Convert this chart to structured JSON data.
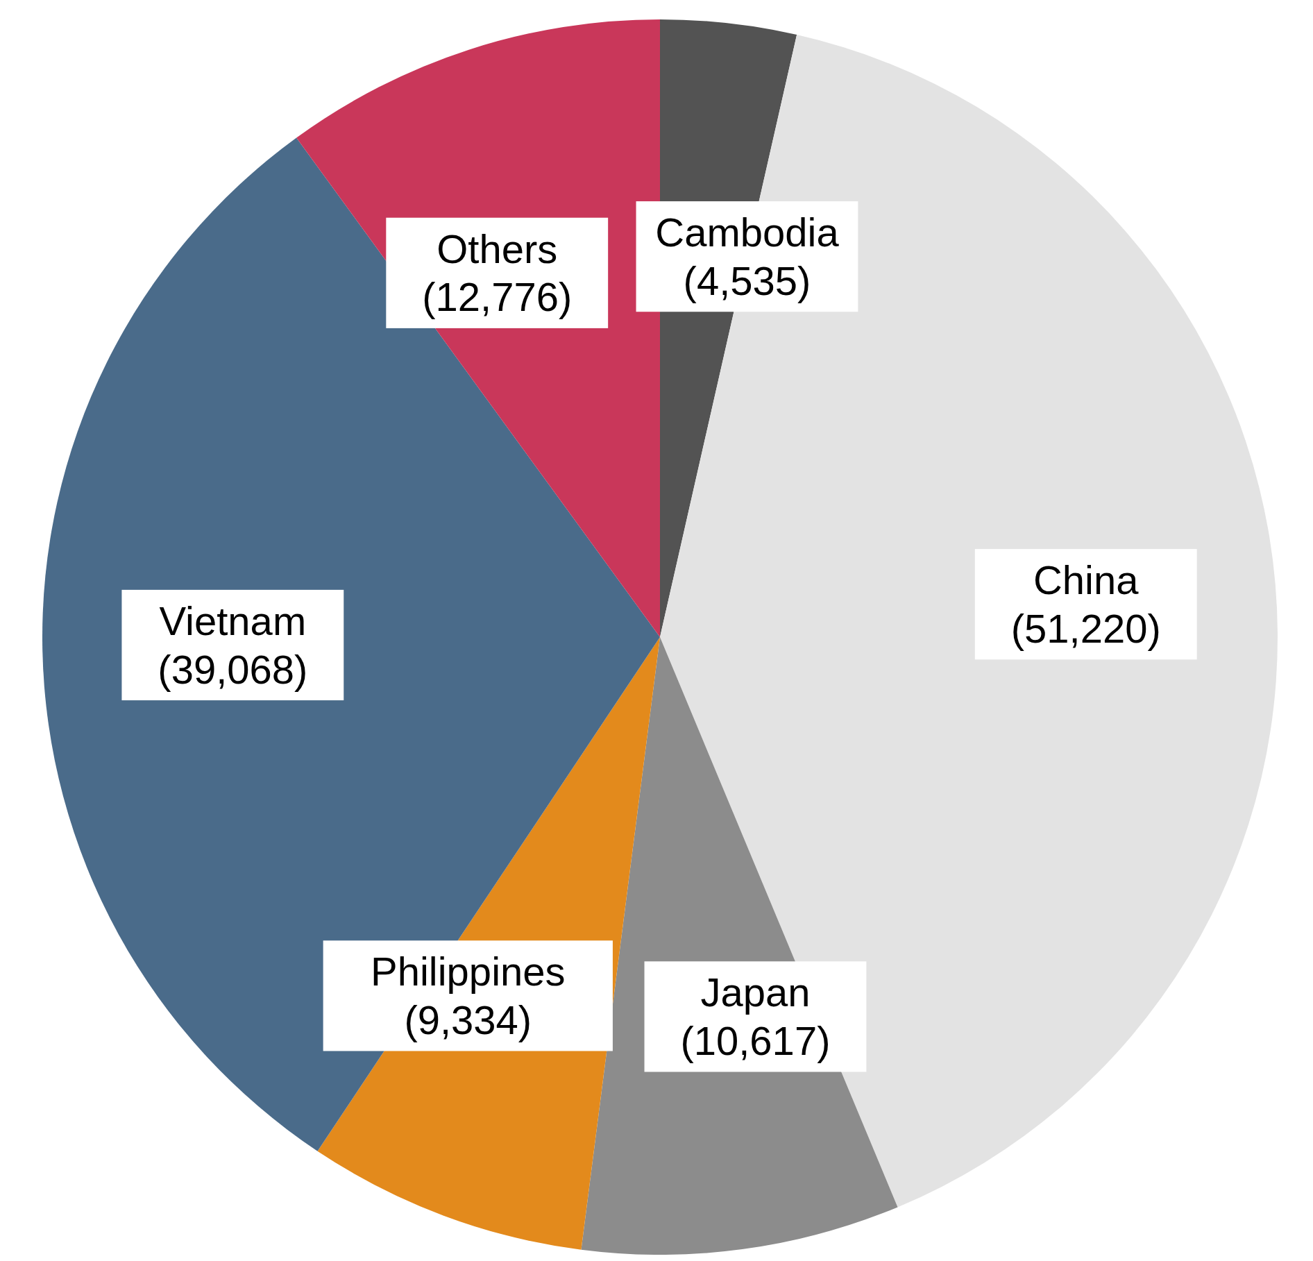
{
  "chart_data": {
    "type": "pie",
    "categories": [
      "Cambodia",
      "China",
      "Japan",
      "Philippines",
      "Vietnam",
      "Others"
    ],
    "values": [
      4535,
      51220,
      10617,
      9334,
      39068,
      12776
    ],
    "colors": [
      "#535353",
      "#e3e3e3",
      "#8c8c8c",
      "#e38a1c",
      "#4a6b8a",
      "#c9375a"
    ],
    "value_labels": [
      "(4,535)",
      "(51,220)",
      "(10,617)",
      "(9,334)",
      "(39,068)",
      "(12,776)"
    ],
    "legend": false
  }
}
